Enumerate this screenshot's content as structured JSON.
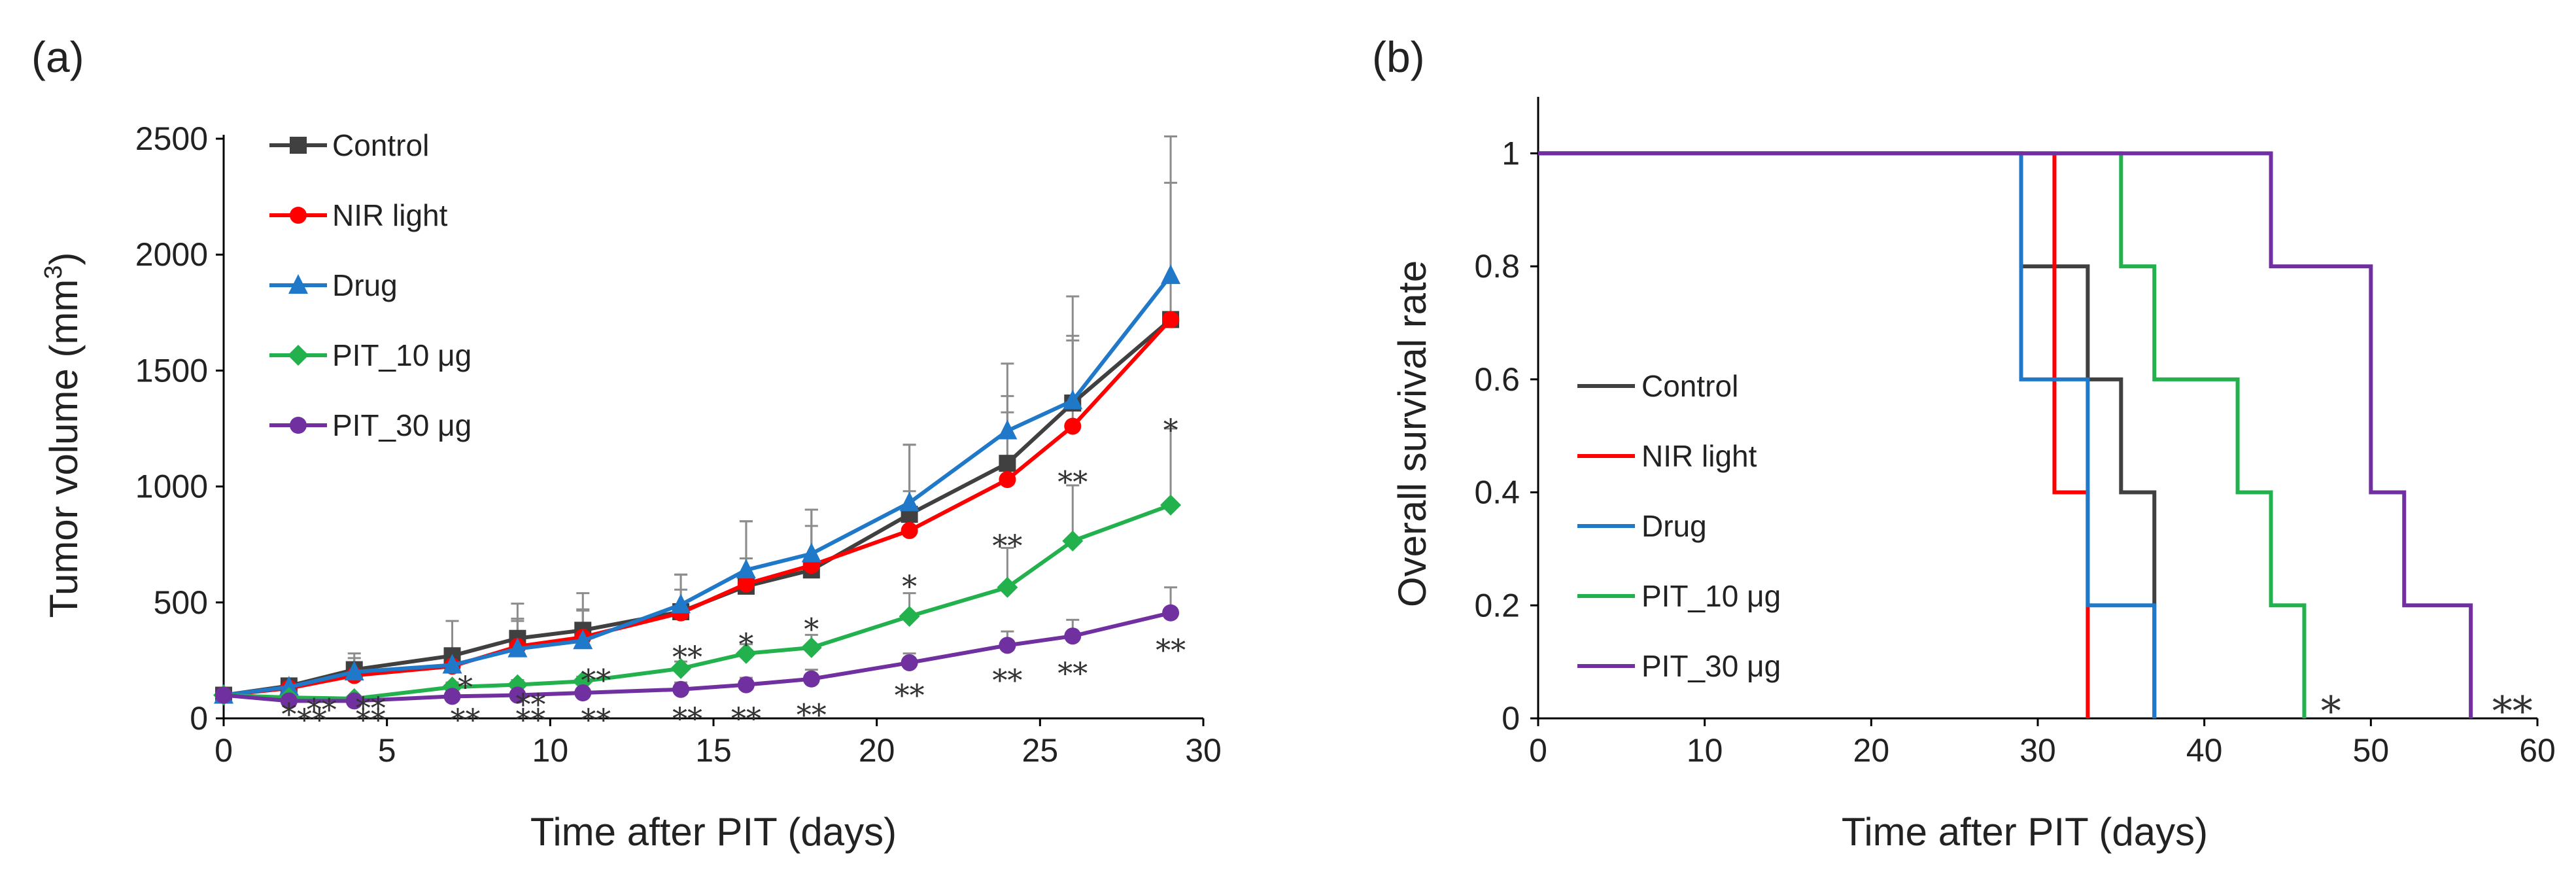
{
  "chart_data": [
    {
      "panel": "(a)",
      "type": "line",
      "xlabel": "Time after PIT (days)",
      "ylabel": "Tumor volume (mm",
      "ylabel_sup": "3",
      "ylabel_close": ")",
      "xlim": [
        0,
        30
      ],
      "ylim": [
        0,
        2500
      ],
      "xticks": [
        0,
        5,
        10,
        15,
        20,
        25,
        30
      ],
      "yticks": [
        0,
        500,
        1000,
        1500,
        2000,
        2500
      ],
      "grid": false,
      "legend_position": "top-left",
      "x": [
        0,
        2,
        4,
        7,
        9,
        11,
        14,
        16,
        18,
        21,
        24,
        26,
        29
      ],
      "series": [
        {
          "name": "Control",
          "color": "#404040",
          "marker": "square",
          "values": [
            100,
            140,
            210,
            270,
            345,
            380,
            460,
            570,
            640,
            880,
            1100,
            1360,
            1720
          ],
          "errors": [
            0,
            30,
            70,
            150,
            150,
            160,
            160,
            280,
            260,
            300,
            290,
            460,
            590
          ]
        },
        {
          "name": "NIR light",
          "color": "#ff0000",
          "marker": "circle",
          "values": [
            100,
            130,
            185,
            225,
            310,
            350,
            455,
            580,
            660,
            810,
            1030,
            1260,
            1720
          ],
          "errors": [
            0,
            20,
            40,
            50,
            110,
            120,
            100,
            110,
            170,
            170,
            290,
            370,
            0
          ]
        },
        {
          "name": "Drug",
          "color": "#1f78c8",
          "marker": "triangle",
          "values": [
            100,
            135,
            200,
            230,
            300,
            335,
            490,
            640,
            710,
            930,
            1240,
            1370,
            1910
          ],
          "errors": [
            0,
            25,
            60,
            70,
            130,
            130,
            130,
            210,
            190,
            250,
            290,
            280,
            600
          ]
        },
        {
          "name": "PIT_10 μg",
          "color": "#22b14c",
          "marker": "diamond",
          "values": [
            100,
            90,
            85,
            135,
            145,
            160,
            215,
            280,
            305,
            440,
            565,
            765,
            920
          ],
          "errors": [
            0,
            10,
            10,
            20,
            20,
            20,
            30,
            40,
            55,
            100,
            170,
            240,
            330
          ]
        },
        {
          "name": "PIT_30 μg",
          "color": "#7030a0",
          "marker": "circle",
          "values": [
            100,
            75,
            75,
            95,
            100,
            110,
            125,
            145,
            170,
            240,
            315,
            355,
            455
          ],
          "errors": [
            0,
            10,
            10,
            15,
            20,
            20,
            30,
            30,
            40,
            40,
            60,
            70,
            110
          ]
        }
      ],
      "annotations": [
        {
          "x": 2,
          "y": 18,
          "text": "*"
        },
        {
          "x": 3,
          "y": 38,
          "text": "**"
        },
        {
          "x": 4.5,
          "y": 45,
          "text": "**"
        },
        {
          "x": 2.7,
          "y": -5,
          "text": "**"
        },
        {
          "x": 4.5,
          "y": -5,
          "text": "**"
        },
        {
          "x": 7.4,
          "y": 135,
          "text": "*"
        },
        {
          "x": 7.4,
          "y": -5,
          "text": "**"
        },
        {
          "x": 9.4,
          "y": 60,
          "text": "**"
        },
        {
          "x": 9.4,
          "y": -5,
          "text": "**"
        },
        {
          "x": 11.4,
          "y": 165,
          "text": "**"
        },
        {
          "x": 11.4,
          "y": -5,
          "text": "**"
        },
        {
          "x": 14.2,
          "y": 265,
          "text": "**"
        },
        {
          "x": 14.2,
          "y": 0,
          "text": "**"
        },
        {
          "x": 16.0,
          "y": 320,
          "text": "*"
        },
        {
          "x": 16.0,
          "y": 0,
          "text": "**"
        },
        {
          "x": 18.0,
          "y": 385,
          "text": "*"
        },
        {
          "x": 18.0,
          "y": 15,
          "text": "**"
        },
        {
          "x": 21.0,
          "y": 570,
          "text": "*"
        },
        {
          "x": 21.0,
          "y": 100,
          "text": "**"
        },
        {
          "x": 24.0,
          "y": 745,
          "text": "**"
        },
        {
          "x": 24.0,
          "y": 165,
          "text": "**"
        },
        {
          "x": 26.0,
          "y": 1020,
          "text": "**"
        },
        {
          "x": 26.0,
          "y": 195,
          "text": "**"
        },
        {
          "x": 29.0,
          "y": 1245,
          "text": "*"
        },
        {
          "x": 29.0,
          "y": 295,
          "text": "**"
        }
      ]
    },
    {
      "panel": "(b)",
      "type": "line",
      "subtype": "step",
      "xlabel": "Time after PIT (days)",
      "ylabel": "Overall survival rate",
      "xlim": [
        0,
        60
      ],
      "ylim": [
        0,
        1.1
      ],
      "xticks": [
        0,
        10,
        20,
        30,
        40,
        50,
        60
      ],
      "yticks": [
        0,
        0.2,
        0.4,
        0.6,
        0.8,
        1
      ],
      "ytick_labels": [
        "0",
        "0.2",
        "0.4",
        "0.6",
        "0.8",
        "1"
      ],
      "grid": false,
      "legend_position": "center-left",
      "series": [
        {
          "name": "Control",
          "color": "#404040",
          "steps": [
            [
              0,
              1
            ],
            [
              29,
              0.8
            ],
            [
              33,
              0.6
            ],
            [
              35,
              0.4
            ],
            [
              37,
              0.2
            ],
            [
              37,
              0
            ]
          ]
        },
        {
          "name": "NIR light",
          "color": "#ff0000",
          "steps": [
            [
              0,
              1
            ],
            [
              31,
              0.4
            ],
            [
              33,
              0.2
            ],
            [
              33,
              0
            ]
          ]
        },
        {
          "name": "Drug",
          "color": "#1f78c8",
          "steps": [
            [
              0,
              1
            ],
            [
              29,
              0.6
            ],
            [
              33,
              0.2
            ],
            [
              37,
              0
            ]
          ]
        },
        {
          "name": "PIT_10 μg",
          "color": "#22b14c",
          "steps": [
            [
              0,
              1
            ],
            [
              35,
              0.8
            ],
            [
              37,
              0.6
            ],
            [
              42,
              0.4
            ],
            [
              44,
              0.2
            ],
            [
              46,
              0
            ]
          ]
        },
        {
          "name": "PIT_30 μg",
          "color": "#7030a0",
          "steps": [
            [
              0,
              1
            ],
            [
              44,
              0.8
            ],
            [
              50,
              0.4
            ],
            [
              52,
              0.2
            ],
            [
              56,
              0
            ]
          ]
        }
      ],
      "annotations": [
        {
          "x": 47.6,
          "y": 0.02,
          "text": "*"
        },
        {
          "x": 58.5,
          "y": 0.02,
          "text": "**"
        }
      ]
    }
  ]
}
